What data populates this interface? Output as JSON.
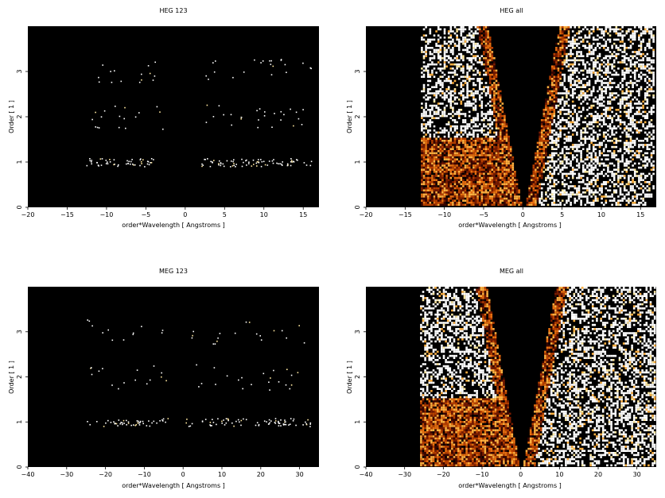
{
  "figure": {
    "background": "#ffffff",
    "plot_background": "#000000",
    "colormap": [
      "#3a0600",
      "#7a1c00",
      "#b84000",
      "#e87010",
      "#ffb040",
      "#ffe8a0",
      "#ffffff"
    ]
  },
  "chart_data": [
    {
      "type": "heatmap",
      "title": "HEG 123",
      "xlabel": "order*Wavelength [ Angstroms ]",
      "ylabel": "Order [ 1 ]",
      "xlim": [
        -20,
        17
      ],
      "ylim": [
        0,
        4
      ],
      "xticks": [
        -20,
        -15,
        -10,
        -5,
        0,
        5,
        10,
        15
      ],
      "yticks": [
        0,
        1,
        2,
        3
      ],
      "grid": false,
      "kind": "orders",
      "bands": [
        {
          "order": 1,
          "x_ranges": [
            [
              -13,
              -4
            ],
            [
              2,
              16
            ]
          ],
          "density": 0.35
        },
        {
          "order": 2,
          "x_ranges": [
            [
              -12,
              -2.5
            ],
            [
              2,
              16
            ]
          ],
          "density": 0.12
        },
        {
          "order": 3,
          "x_ranges": [
            [
              -13,
              -3.5
            ],
            [
              2,
              16
            ]
          ],
          "density": 0.1
        }
      ]
    },
    {
      "type": "heatmap",
      "title": "HEG all",
      "xlabel": "order*Wavelength [ Angstroms ]",
      "ylabel": "Order [ 1 ]",
      "xlim": [
        -20,
        17
      ],
      "ylim": [
        0,
        4
      ],
      "xticks": [
        -20,
        -15,
        -10,
        -5,
        0,
        5,
        10,
        15
      ],
      "yticks": [
        0,
        1,
        2,
        3
      ],
      "grid": false,
      "kind": "all",
      "data_range": [
        -13,
        17
      ],
      "wedge": {
        "center": 0,
        "halfwidth_at_top": 4.3
      }
    },
    {
      "type": "heatmap",
      "title": "MEG 123",
      "xlabel": "order*Wavelength [ Angstroms ]",
      "ylabel": "Order [ 1 ]",
      "xlim": [
        -40,
        35
      ],
      "ylim": [
        0,
        4
      ],
      "xticks": [
        -40,
        -30,
        -20,
        -10,
        0,
        10,
        20,
        30
      ],
      "yticks": [
        0,
        1,
        2,
        3
      ],
      "grid": false,
      "kind": "orders",
      "bands": [
        {
          "order": 1,
          "x_ranges": [
            [
              -25,
              -4
            ],
            [
              0,
              33
            ]
          ],
          "density": 0.3
        },
        {
          "order": 2,
          "x_ranges": [
            [
              -25,
              -4
            ],
            [
              2,
              30
            ]
          ],
          "density": 0.1
        },
        {
          "order": 3,
          "x_ranges": [
            [
              -25,
              -5
            ],
            [
              2,
              32
            ]
          ],
          "density": 0.08
        }
      ]
    },
    {
      "type": "heatmap",
      "title": "MEG all",
      "xlabel": "order*Wavelength [ Angstroms ]",
      "ylabel": "Order [ 1 ]",
      "xlim": [
        -40,
        35
      ],
      "ylim": [
        0,
        4
      ],
      "xticks": [
        -40,
        -30,
        -20,
        -10,
        0,
        10,
        20,
        30
      ],
      "yticks": [
        0,
        1,
        2,
        3
      ],
      "grid": false,
      "kind": "all",
      "data_range": [
        -26,
        35
      ],
      "wedge": {
        "center": 0,
        "halfwidth_at_top": 8.5
      }
    }
  ]
}
